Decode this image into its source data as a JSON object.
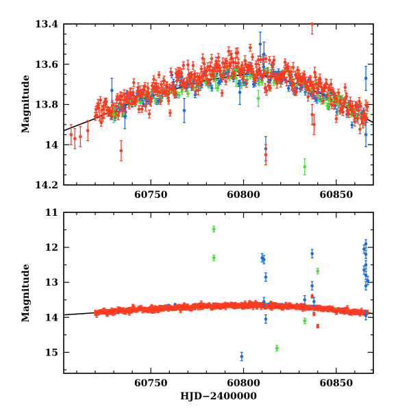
{
  "colors": {
    "red_series": "#ff3b1f",
    "blue_series": "#1a6de0",
    "green_series": "#44e034",
    "model_curve": "#000000"
  },
  "chart_data": [
    {
      "type": "scatter",
      "xlabel": "",
      "ylabel": "Magnitude",
      "xlim": [
        60703,
        60870
      ],
      "ylim": [
        14.2,
        13.4
      ],
      "y_inverted": true,
      "x_ticks": [
        60750,
        60800,
        60850
      ],
      "y_ticks": [
        13.4,
        13.6,
        13.8,
        14,
        14.2
      ],
      "y_tick_labels": [
        "13.4",
        "13.6",
        "13.8",
        "14",
        "14.2"
      ],
      "grid": false,
      "model_curve": {
        "x": [
          60703,
          60720,
          60740,
          60760,
          60780,
          60800,
          60815,
          60830,
          60845,
          60860,
          60870
        ],
        "y": [
          13.93,
          13.87,
          13.79,
          13.73,
          13.68,
          13.65,
          13.66,
          13.7,
          13.76,
          13.84,
          13.89
        ]
      },
      "outliers": {
        "red": [
          [
            60707,
            13.95
          ],
          [
            60709,
            13.97
          ],
          [
            60712,
            13.96
          ],
          [
            60716,
            13.93
          ],
          [
            60734,
            14.03
          ],
          [
            60812,
            14.05
          ],
          [
            60837,
            13.4
          ],
          [
            60837,
            13.85
          ],
          [
            60838,
            13.9
          ]
        ],
        "blue": [
          [
            60729,
            13.73
          ],
          [
            60736,
            13.86
          ],
          [
            60768,
            13.83
          ],
          [
            60798,
            13.74
          ],
          [
            60809,
            13.5
          ],
          [
            60811,
            13.55
          ],
          [
            60812,
            14.02
          ],
          [
            60866,
            13.95
          ],
          [
            60866,
            13.67
          ]
        ],
        "green": [
          [
            60730,
            13.85
          ],
          [
            60785,
            13.68
          ],
          [
            60796,
            13.67
          ],
          [
            60808,
            13.77
          ],
          [
            60833,
            14.11
          ],
          [
            60846,
            13.78
          ],
          [
            60851,
            13.8
          ]
        ]
      }
    },
    {
      "type": "scatter",
      "xlabel": "HJD−2400000",
      "ylabel": "Magnitude",
      "xlim": [
        60703,
        60870
      ],
      "ylim": [
        15.6,
        11
      ],
      "y_inverted": true,
      "x_ticks": [
        60750,
        60800,
        60850
      ],
      "y_ticks": [
        11,
        12,
        13,
        14,
        15
      ],
      "y_tick_labels": [
        "11",
        "12",
        "13",
        "14",
        "15"
      ],
      "grid": false,
      "model_curve": {
        "x": [
          60703,
          60720,
          60740,
          60760,
          60780,
          60800,
          60815,
          60830,
          60845,
          60860,
          60870
        ],
        "y": [
          13.93,
          13.87,
          13.79,
          13.73,
          13.68,
          13.65,
          13.66,
          13.7,
          13.76,
          13.84,
          13.89
        ]
      },
      "outliers": {
        "red": [
          [
            60837,
            13.4
          ],
          [
            60840,
            14.25
          ],
          [
            60838,
            13.9
          ]
        ],
        "blue": [
          [
            60799,
            15.12
          ],
          [
            60810,
            12.3
          ],
          [
            60811,
            12.35
          ],
          [
            60812,
            12.85
          ],
          [
            60811,
            13.55
          ],
          [
            60812,
            14.05
          ],
          [
            60833,
            13.5
          ],
          [
            60837,
            12.18
          ],
          [
            60837,
            13.1
          ],
          [
            60838,
            13.55
          ],
          [
            60866,
            11.9
          ],
          [
            60866,
            12.2
          ],
          [
            60866,
            12.5
          ],
          [
            60866,
            12.8
          ],
          [
            60866,
            13.1
          ],
          [
            60866,
            13.95
          ],
          [
            60865,
            12.05
          ],
          [
            60865,
            12.65
          ],
          [
            60867,
            12.95
          ]
        ],
        "green": [
          [
            60784,
            11.48
          ],
          [
            60784,
            12.3
          ],
          [
            60818,
            14.88
          ],
          [
            60833,
            14.1
          ],
          [
            60840,
            12.68
          ]
        ]
      }
    }
  ]
}
